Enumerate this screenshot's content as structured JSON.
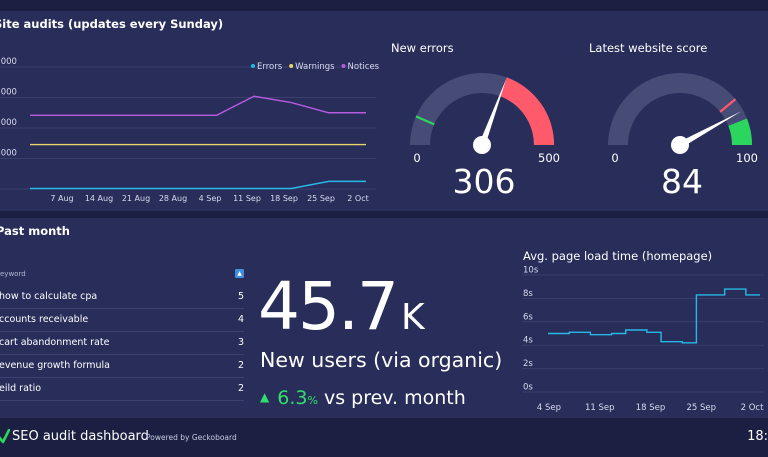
{
  "site_audits": {
    "title": "Site audits (updates every Sunday)",
    "chart_data": {
      "type": "line",
      "title": "Site audits (updates every Sunday)",
      "categories": [
        "7 Aug",
        "14 Aug",
        "21 Aug",
        "28 Aug",
        "4 Sep",
        "11 Sep",
        "18 Sep",
        "25 Sep",
        "2 Oct"
      ],
      "y_tick_labels": [
        ",000",
        ",000",
        ",000",
        ",000",
        ""
      ],
      "legend": [
        "Errors",
        "Warnings",
        "Notices"
      ],
      "legend_position": "top-right",
      "series": [
        {
          "name": "Errors",
          "color": "#27b9e6",
          "values": [
            0.2,
            0.2,
            0.2,
            0.2,
            0.2,
            0.2,
            0.2,
            0.2,
            3,
            3
          ]
        },
        {
          "name": "Warnings",
          "color": "#e8d66a",
          "values": [
            17.5,
            17.5,
            17.5,
            17.5,
            17.5,
            17.5,
            17.5,
            17.5,
            17.5,
            17.5
          ]
        },
        {
          "name": "Notices",
          "color": "#b75be0",
          "values": [
            29,
            29,
            29,
            29,
            29,
            29,
            36.5,
            34,
            30,
            30
          ]
        }
      ],
      "x": [
        0,
        1,
        2,
        3,
        4,
        5,
        6,
        7,
        8,
        9
      ],
      "ylim": [
        0,
        48
      ]
    }
  },
  "new_errors": {
    "title": "New errors",
    "value": "306",
    "min": "0",
    "max": "500",
    "value_num": 306,
    "min_num": 0,
    "max_num": 500,
    "green_threshold": 65,
    "red_threshold": 400,
    "colors": {
      "track": "#474c76",
      "red": "#ff5a6b",
      "green": "#2bd65f",
      "needle": "#ffffff"
    }
  },
  "website_score": {
    "title": "Latest website score",
    "value": "84",
    "min": "0",
    "max": "100",
    "value_num": 84,
    "min_num": 0,
    "max_num": 100,
    "red_marker": 78,
    "green_threshold": 88,
    "colors": {
      "track": "#474c76",
      "red": "#ff5a6b",
      "green": "#2bd65f",
      "needle": "#ffffff"
    }
  },
  "past_month": {
    "title": "Past month",
    "keywords": {
      "header_keyword": "eyword",
      "header_sort_icon": "sort-icon",
      "rows": [
        {
          "keyword": "how to calculate cpa",
          "count": "5"
        },
        {
          "keyword": "ccounts receivable",
          "count": "4"
        },
        {
          "keyword": "cart abandonment rate",
          "count": "3"
        },
        {
          "keyword": "evenue growth formula",
          "count": "2"
        },
        {
          "keyword": "eild ratio",
          "count": "2"
        }
      ]
    },
    "new_users": {
      "value": "45.7",
      "unit": "K",
      "label": "New users (via organic)",
      "change_arrow": "▲",
      "change_value": "6.3",
      "change_suffix": "%",
      "change_label": "vs prev. month",
      "colors": {
        "positive": "#2ee06b"
      }
    }
  },
  "load_time": {
    "title": "Avg. page load time (homepage)",
    "chart_data": {
      "type": "line",
      "title": "Avg. page load time (homepage)",
      "y_tick_labels": [
        "10s",
        "8s",
        "6s",
        "4s",
        "2s",
        "0s"
      ],
      "x_tick_labels": [
        "4 Sep",
        "11 Sep",
        "18 Sep",
        "25 Sep",
        "2 Oct"
      ],
      "ylim": [
        0,
        10
      ],
      "series": [
        {
          "name": "Load time",
          "color": "#27b9e6",
          "values": [
            5.0,
            5.0,
            5.0,
            5.1,
            5.1,
            5.1,
            4.9,
            4.9,
            4.9,
            5.0,
            5.0,
            5.3,
            5.3,
            5.3,
            5.1,
            5.1,
            4.3,
            4.3,
            4.3,
            4.2,
            4.2,
            8.3,
            8.3,
            8.3,
            8.3,
            8.8,
            8.8,
            8.8,
            8.3,
            8.3
          ]
        }
      ]
    }
  },
  "footer": {
    "title": "SEO audit dashboard",
    "powered_by": "Powered by Geckoboard",
    "clock": "18:",
    "logo_icon": "check-logo-icon"
  }
}
